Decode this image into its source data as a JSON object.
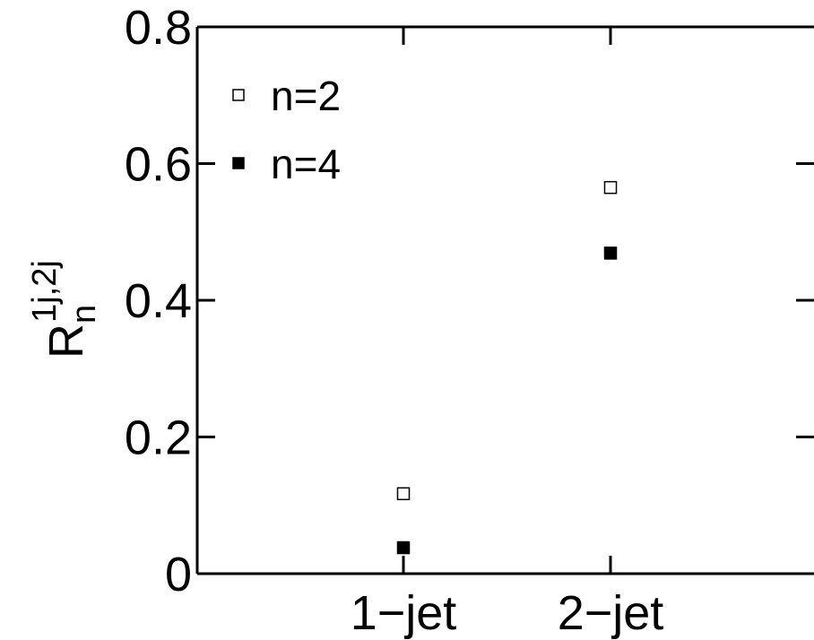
{
  "chart_data": {
    "type": "scatter",
    "title": "",
    "xlabel": "",
    "ylabel": {
      "base": "R",
      "subscript": "n",
      "superscript": "1j,2j"
    },
    "categories": [
      "1−jet",
      "2−jet"
    ],
    "ylim": [
      0,
      0.8
    ],
    "yticks": [
      "0",
      "0.2",
      "0.4",
      "0.6",
      "0.8"
    ],
    "ytick_values": [
      0,
      0.2,
      0.4,
      0.6,
      0.8
    ],
    "grid": false,
    "legend_position": "top-left",
    "series": [
      {
        "name": "n=2",
        "marker": "open-square",
        "color": "#000000",
        "values": [
          0.117,
          0.565
        ]
      },
      {
        "name": "n=4",
        "marker": "filled-square",
        "color": "#000000",
        "values": [
          0.038,
          0.469
        ]
      }
    ]
  }
}
